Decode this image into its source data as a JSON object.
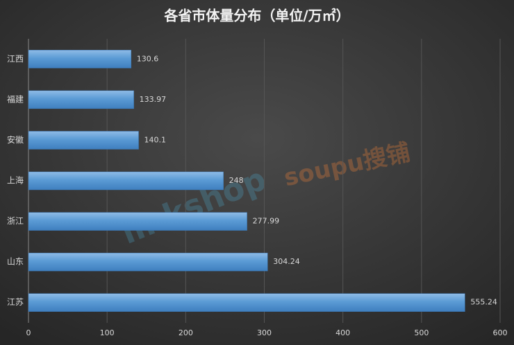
{
  "chart_data": {
    "type": "bar",
    "orientation": "horizontal",
    "title": "各省市体量分布（单位/万㎡）",
    "categories": [
      "江西",
      "福建",
      "安徽",
      "上海",
      "浙江",
      "山东",
      "江苏"
    ],
    "values": [
      130.6,
      133.97,
      140.1,
      248,
      277.99,
      304.24,
      555.24
    ],
    "color": "#5b9bd5",
    "xlim": [
      0,
      600
    ],
    "xticks": [
      0,
      100,
      200,
      300,
      400,
      500,
      600
    ],
    "grid": true,
    "watermarks": [
      "linkshop",
      "soupu搜铺"
    ]
  }
}
